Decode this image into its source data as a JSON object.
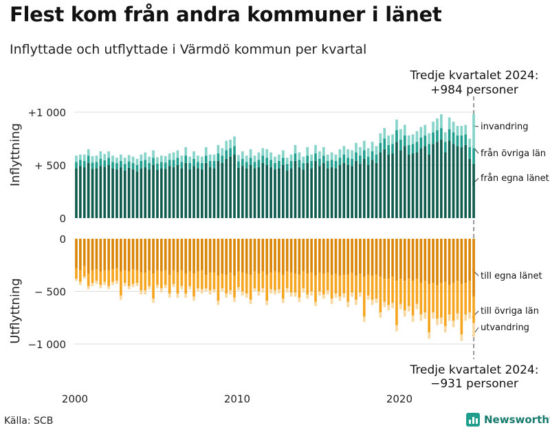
{
  "title": "Flest kom från andra kommuner i länet",
  "subtitle": "Inflyttade och utflyttade i Värmdö kommun per kvartal",
  "source": "Källa: SCB",
  "brand": "Newsworthy",
  "colors": {
    "in_own_county": "#0f5c4e",
    "in_other_county": "#1f9e8e",
    "in_immigration": "#86d3ca",
    "out_own_county": "#d98609",
    "out_other_county": "#f6a51f",
    "out_emigration": "#f8d89e",
    "grid": "#dddddd"
  },
  "annotations": {
    "top": [
      "Tredje kvartalet 2024:",
      "+984 personer"
    ],
    "bottom": [
      "Tredje kvartalet 2024:",
      "−931 personer"
    ]
  },
  "chart_data": {
    "type": "bar",
    "x_start": "2000 Q1",
    "x_end": "2024 Q3",
    "x_ticks": [
      "2000",
      "2010",
      "2020"
    ],
    "panels": [
      {
        "name": "inflyttning",
        "ylabel": "Inflyttning",
        "ylim": [
          0,
          1000
        ],
        "ytick_labels": [
          "0",
          "+  500",
          "+1 000"
        ],
        "series": [
          {
            "name": "från egna länet",
            "label": "från egna länet",
            "values": [
              470,
              490,
              480,
              520,
              465,
              470,
              490,
              485,
              500,
              470,
              460,
              480,
              450,
              475,
              460,
              440,
              470,
              480,
              460,
              500,
              455,
              470,
              465,
              490,
              480,
              500,
              470,
              520,
              460,
              490,
              470,
              460,
              520,
              480,
              470,
              540,
              520,
              560,
              580,
              600,
              475,
              490,
              470,
              500,
              470,
              480,
              520,
              500,
              480,
              460,
              470,
              500,
              450,
              470,
              540,
              480,
              460,
              520,
              470,
              540,
              490,
              520,
              470,
              480,
              470,
              500,
              520,
              500,
              490,
              540,
              510,
              560,
              500,
              550,
              520,
              620,
              650,
              600,
              610,
              720,
              640,
              680,
              600,
              610,
              620,
              660,
              680,
              600,
              700,
              720,
              740,
              620,
              730,
              700,
              680,
              670,
              690,
              560,
              510
            ]
          },
          {
            "name": "från övriga län",
            "label": "från övriga län",
            "values": [
              60,
              60,
              60,
              70,
              60,
              60,
              70,
              60,
              70,
              60,
              60,
              60,
              60,
              60,
              60,
              60,
              70,
              70,
              60,
              70,
              60,
              60,
              60,
              60,
              70,
              70,
              60,
              70,
              60,
              70,
              60,
              60,
              70,
              60,
              70,
              70,
              70,
              80,
              80,
              80,
              60,
              70,
              60,
              70,
              60,
              70,
              70,
              70,
              70,
              60,
              70,
              70,
              60,
              70,
              70,
              70,
              60,
              70,
              70,
              70,
              70,
              70,
              70,
              70,
              70,
              70,
              80,
              70,
              70,
              80,
              80,
              80,
              80,
              80,
              80,
              90,
              100,
              90,
              90,
              110,
              100,
              100,
              90,
              90,
              100,
              100,
              100,
              100,
              110,
              110,
              110,
              100,
              110,
              110,
              100,
              110,
              100,
              110,
              150
            ]
          },
          {
            "name": "invandring",
            "label": "invandring",
            "values": [
              60,
              50,
              60,
              60,
              60,
              60,
              70,
              60,
              60,
              60,
              50,
              60,
              60,
              60,
              60,
              60,
              60,
              70,
              60,
              70,
              60,
              60,
              60,
              60,
              70,
              70,
              60,
              80,
              60,
              70,
              60,
              60,
              80,
              60,
              60,
              80,
              70,
              90,
              80,
              90,
              60,
              70,
              60,
              80,
              60,
              70,
              70,
              80,
              70,
              60,
              60,
              70,
              60,
              60,
              80,
              70,
              60,
              80,
              60,
              80,
              70,
              80,
              60,
              70,
              60,
              80,
              80,
              80,
              80,
              90,
              80,
              90,
              80,
              90,
              80,
              90,
              100,
              90,
              90,
              100,
              100,
              100,
              90,
              90,
              100,
              100,
              100,
              100,
              100,
              110,
              130,
              90,
              110,
              100,
              90,
              90,
              90,
              80,
              324
            ]
          }
        ]
      },
      {
        "name": "utflyttning",
        "ylabel": "Utflyttning",
        "ylim": [
          -1000,
          0
        ],
        "ytick_labels": [
          "0",
          "−  500",
          "−1 000"
        ],
        "series": [
          {
            "name": "till egna länet",
            "label": "till egna länet",
            "values": [
              -280,
              -300,
              -260,
              -330,
              -300,
              -290,
              -310,
              -300,
              -300,
              -290,
              -280,
              -310,
              -300,
              -310,
              -290,
              -300,
              -320,
              -320,
              -300,
              -330,
              -300,
              -310,
              -300,
              -340,
              -300,
              -320,
              -300,
              -330,
              -310,
              -330,
              -310,
              -300,
              -340,
              -320,
              -320,
              -350,
              -330,
              -340,
              -320,
              -350,
              -310,
              -320,
              -330,
              -340,
              -310,
              -330,
              -310,
              -340,
              -320,
              -310,
              -320,
              -340,
              -310,
              -320,
              -330,
              -340,
              -310,
              -330,
              -320,
              -350,
              -320,
              -330,
              -320,
              -340,
              -330,
              -350,
              -340,
              -340,
              -320,
              -350,
              -330,
              -360,
              -340,
              -350,
              -340,
              -360,
              -380,
              -380,
              -360,
              -400,
              -380,
              -400,
              -380,
              -400,
              -380,
              -420,
              -400,
              -430,
              -420,
              -440,
              -420,
              -410,
              -440,
              -420,
              -400,
              -430,
              -420,
              -400,
              -550
            ]
          },
          {
            "name": "till övriga län",
            "label": "till övriga län",
            "values": [
              -100,
              -110,
              -100,
              -120,
              -120,
              -110,
              -130,
              -110,
              -150,
              -120,
              -120,
              -230,
              -120,
              -140,
              -140,
              -120,
              -170,
              -170,
              -150,
              -240,
              -140,
              -160,
              -140,
              -180,
              -130,
              -200,
              -150,
              -190,
              -140,
              -220,
              -160,
              -180,
              -130,
              -170,
              -160,
              -240,
              -140,
              -180,
              -170,
              -210,
              -150,
              -180,
              -190,
              -240,
              -160,
              -170,
              -160,
              -250,
              -160,
              -180,
              -160,
              -230,
              -160,
              -190,
              -180,
              -220,
              -160,
              -200,
              -180,
              -250,
              -180,
              -200,
              -170,
              -230,
              -190,
              -200,
              -180,
              -260,
              -190,
              -230,
              -180,
              -380,
              -200,
              -230,
              -230,
              -340,
              -220,
              -250,
              -250,
              -420,
              -240,
              -280,
              -260,
              -330,
              -240,
              -300,
              -300,
              -460,
              -280,
              -320,
              -330,
              -420,
              -280,
              -360,
              -310,
              -480,
              -300,
              -300,
              -250
            ]
          },
          {
            "name": "utvandring",
            "label": "utvandring",
            "values": [
              -20,
              -30,
              -20,
              -30,
              -30,
              -30,
              -30,
              -30,
              -30,
              -30,
              -30,
              -40,
              -30,
              -30,
              -30,
              -30,
              -40,
              -40,
              -30,
              -40,
              -30,
              -40,
              -30,
              -40,
              -30,
              -40,
              -30,
              -40,
              -30,
              -40,
              -30,
              -40,
              -30,
              -40,
              -30,
              -40,
              -30,
              -40,
              -40,
              -40,
              -30,
              -40,
              -40,
              -40,
              -30,
              -40,
              -40,
              -40,
              -40,
              -40,
              -40,
              -40,
              -40,
              -40,
              -40,
              -40,
              -40,
              -40,
              -40,
              -40,
              -40,
              -40,
              -40,
              -50,
              -40,
              -40,
              -40,
              -50,
              -40,
              -50,
              -40,
              -50,
              -40,
              -50,
              -40,
              -50,
              -50,
              -50,
              -50,
              -60,
              -50,
              -60,
              -50,
              -60,
              -50,
              -60,
              -60,
              -60,
              -60,
              -60,
              -60,
              -60,
              -60,
              -60,
              -60,
              -60,
              -60,
              -60,
              -131
            ]
          }
        ]
      }
    ]
  }
}
